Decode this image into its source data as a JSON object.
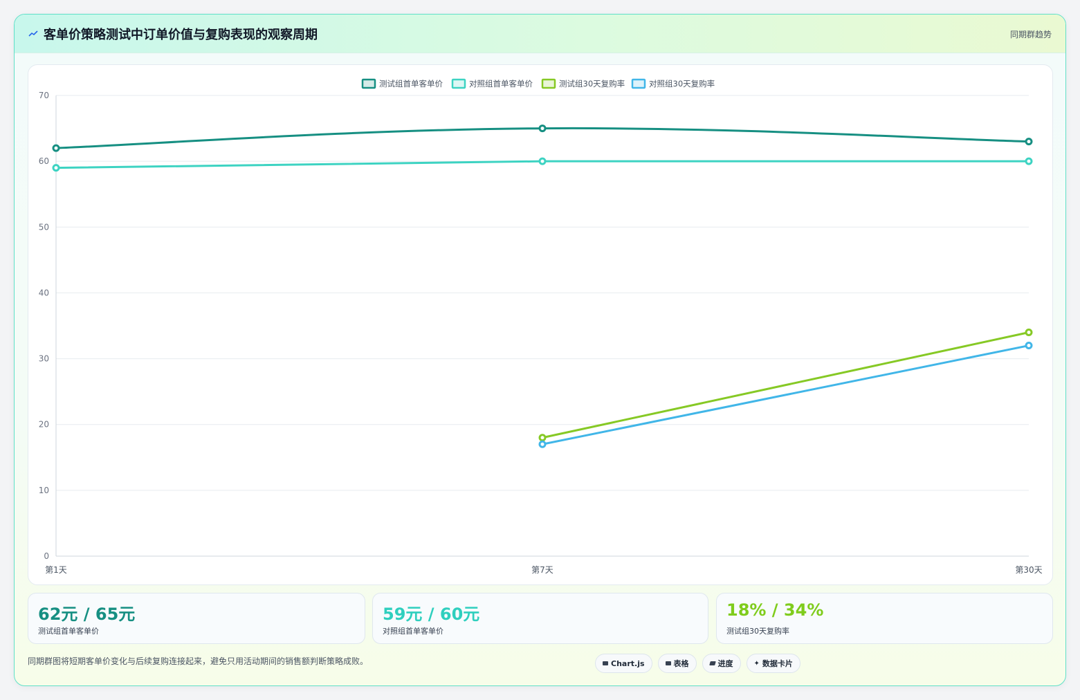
{
  "header": {
    "title": "客单价策略测试中订单价值与复购表现的观察周期",
    "badge": "同期群趋势"
  },
  "chart_data": {
    "type": "line",
    "categories": [
      "第1天",
      "第7天",
      "第30天"
    ],
    "series": [
      {
        "name": "测试组首单客单价",
        "color": "#168f82",
        "values": [
          62,
          65,
          63
        ]
      },
      {
        "name": "对照组首单客单价",
        "color": "#3dd3c2",
        "values": [
          59,
          60,
          60
        ]
      },
      {
        "name": "测试组30天复购率",
        "color": "#86c925",
        "values": [
          null,
          18,
          34
        ]
      },
      {
        "name": "对照组30天复购率",
        "color": "#41b6e8",
        "values": [
          null,
          17,
          32
        ]
      }
    ],
    "ylim": [
      0,
      70
    ],
    "yticks": [
      0,
      10,
      20,
      30,
      40,
      50,
      60,
      70
    ],
    "legend_position": "top-center",
    "grid": true
  },
  "stats": [
    {
      "value": "62元 / 65元",
      "label": "测试组首单客单价",
      "color": "#168f82"
    },
    {
      "value": "59元 / 60元",
      "label": "对照组首单客单价",
      "color": "#2fcfbe"
    },
    {
      "value": "18% / 34%",
      "label": "测试组30天复购率",
      "color": "#7fcc1c"
    }
  ],
  "footnote": "同期群图将短期客单价变化与后续复购连接起来，避免只用活动期间的销售额判断策略成败。",
  "chips": [
    "Chart.js",
    "表格",
    "进度",
    "数据卡片"
  ]
}
